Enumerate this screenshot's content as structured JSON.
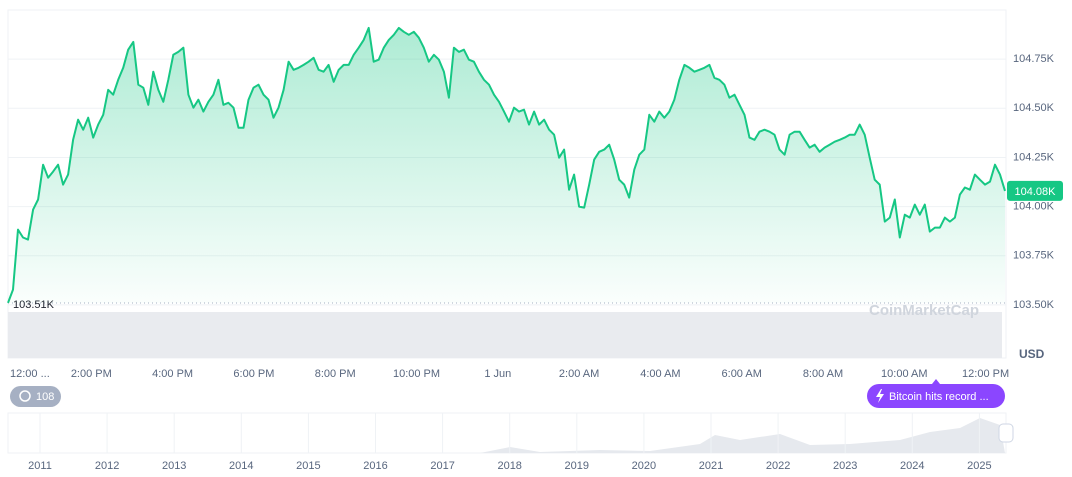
{
  "chart_data": {
    "type": "line",
    "color": "#16c784",
    "currency": "USD",
    "ylim": [
      103230,
      105000
    ],
    "yticks": [
      {
        "value": 103500,
        "label": "103.50K"
      },
      {
        "value": 103750,
        "label": "103.75K"
      },
      {
        "value": 104000,
        "label": "104.00K"
      },
      {
        "value": 104250,
        "label": "104.25K"
      },
      {
        "value": 104500,
        "label": "104.50K"
      },
      {
        "value": 104750,
        "label": "104.75K"
      }
    ],
    "grid": true,
    "xtick_labels": [
      "12:00 ...",
      "2:00 PM",
      "4:00 PM",
      "6:00 PM",
      "8:00 PM",
      "10:00 PM",
      "1 Jun",
      "2:00 AM",
      "4:00 AM",
      "6:00 AM",
      "8:00 AM",
      "10:00 AM",
      "12:00 PM"
    ],
    "min_label": {
      "value": 103510,
      "label": "103.51K"
    },
    "last_label": {
      "value": 104080,
      "label": "104.08K"
    },
    "values": [
      103510,
      103578,
      103883,
      103843,
      103832,
      103985,
      104036,
      104213,
      104147,
      104178,
      104213,
      104112,
      104163,
      104340,
      104442,
      104391,
      104452,
      104351,
      104417,
      104467,
      104594,
      104569,
      104645,
      104706,
      104798,
      104838,
      104620,
      104605,
      104518,
      104686,
      104594,
      104533,
      104645,
      104772,
      104787,
      104808,
      104569,
      104503,
      104544,
      104483,
      104533,
      104569,
      104645,
      104518,
      104528,
      104503,
      104401,
      104401,
      104544,
      104605,
      104620,
      104569,
      104544,
      104452,
      104503,
      104594,
      104737,
      104696,
      104706,
      104721,
      104737,
      104757,
      104696,
      104686,
      104721,
      104635,
      104696,
      104721,
      104721,
      104772,
      104808,
      104848,
      104909,
      104737,
      104747,
      104808,
      104848,
      104874,
      104909,
      104889,
      104874,
      104889,
      104859,
      104808,
      104737,
      104772,
      104747,
      104686,
      104554,
      104808,
      104787,
      104798,
      104747,
      104737,
      104686,
      104645,
      104620,
      104569,
      104533,
      104483,
      104432,
      104503,
      104483,
      104493,
      104417,
      104483,
      104417,
      104442,
      104391,
      104366,
      104249,
      104290,
      104086,
      104163,
      104000,
      103995,
      104112,
      104239,
      104279,
      104290,
      104315,
      104239,
      104137,
      104112,
      104046,
      104188,
      104264,
      104290,
      104467,
      104432,
      104483,
      104452,
      104483,
      104544,
      104645,
      104721,
      104706,
      104686,
      104696,
      104706,
      104721,
      104655,
      104645,
      104620,
      104554,
      104569,
      104518,
      104467,
      104351,
      104340,
      104381,
      104391,
      104381,
      104366,
      104290,
      104264,
      104366,
      104381,
      104381,
      104340,
      104300,
      104315,
      104279,
      104300,
      104315,
      104330,
      104340,
      104351,
      104366,
      104366,
      104417,
      104366,
      104249,
      104137,
      104112,
      103924,
      103944,
      104036,
      103843,
      103959,
      103944,
      104010,
      103959,
      104010,
      103873,
      103893,
      103893,
      103944,
      103924,
      103944,
      104061,
      104097,
      104086,
      104163,
      104137,
      104112,
      104127,
      104213,
      104163,
      104080
    ],
    "event_count": 108,
    "event_label": "Bitcoin hits record ...",
    "watermark": "CoinMarketCap",
    "navigator_years": [
      2011,
      2012,
      2013,
      2014,
      2015,
      2016,
      2017,
      2018,
      2019,
      2020,
      2021,
      2022,
      2023,
      2024,
      2025
    ]
  }
}
